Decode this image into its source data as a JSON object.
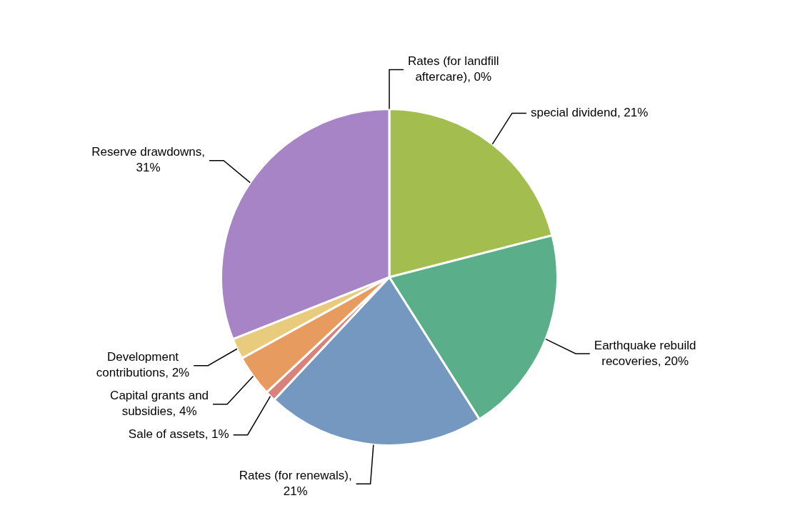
{
  "chart_data": {
    "type": "pie",
    "categories": [
      "Rates (for landfill aftercare), 0%",
      "special dividend, 21%",
      "Earthquake rebuild recoveries, 20%",
      "Rates (for renewals), 21%",
      "Sale of assets, 1%",
      "Capital grants and subsidies, 4%",
      "Development contributions, 2%",
      "Reserve drawdowns, 31%"
    ],
    "values": [
      0,
      21,
      20,
      21,
      1,
      4,
      2,
      31
    ],
    "colors": [
      "#4f81bd",
      "#a3bd4f",
      "#5aae8a",
      "#7498c0",
      "#d9827c",
      "#e89b5e",
      "#e8cb7c",
      "#a784c6"
    ],
    "legend": false
  }
}
